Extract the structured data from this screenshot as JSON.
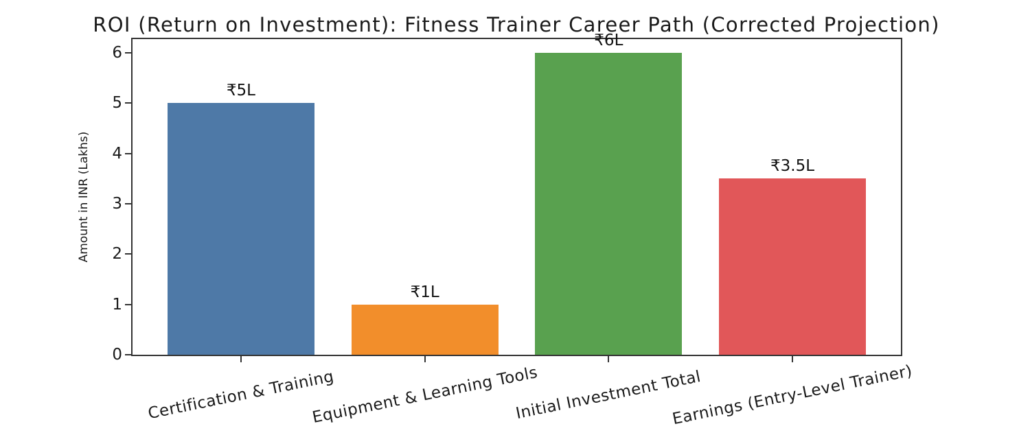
{
  "chart_data": {
    "type": "bar",
    "title": "ROI (Return on Investment): Fitness Trainer Career Path (Corrected Projection)",
    "xlabel": "",
    "ylabel": "Amount in INR (Lakhs)",
    "categories": [
      "Certification & Training",
      "Equipment & Learning Tools",
      "Initial Investment Total",
      "Earnings (Entry-Level Trainer)"
    ],
    "values": [
      5,
      1,
      6,
      3.5
    ],
    "bar_value_labels": [
      "₹5L",
      "₹1L",
      "₹6L",
      "₹3.5L"
    ],
    "bar_colors": [
      "#4e79a7",
      "#f28e2b",
      "#59a14f",
      "#e15759"
    ],
    "ylim": [
      0,
      6.27
    ],
    "yticks": [
      0,
      1,
      2,
      3,
      4,
      5,
      6
    ],
    "grid": false,
    "legend": null,
    "x_tick_rotation_deg": 11.5,
    "bar_relative_width": 0.8,
    "axis_color": "#333333",
    "text_color": "#1a1a1a",
    "background_color": "#ffffff"
  }
}
